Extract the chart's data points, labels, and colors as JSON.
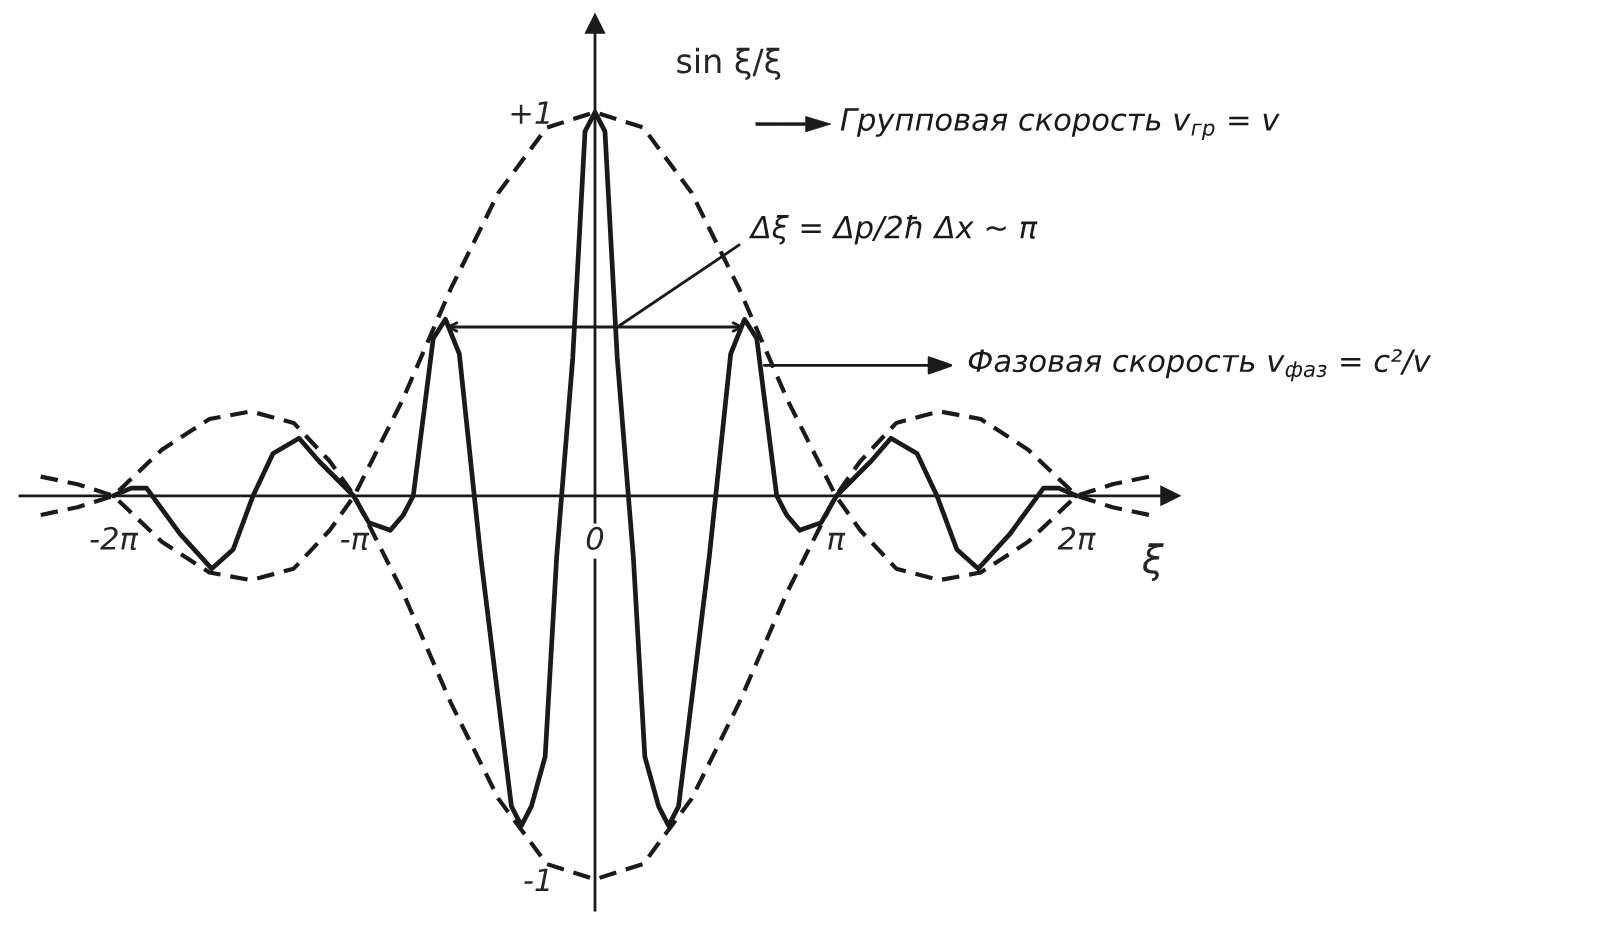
{
  "chart_data": {
    "type": "line",
    "xlabel": "ξ",
    "ylabel": "sin ξ/ξ",
    "series": [
      {
        "color": "#1a1a1a",
        "line_style": "dashed",
        "x": [
          -7.23,
          -6.75,
          -6.28,
          -5.65,
          -5.03,
          -4.49,
          -3.93,
          -3.46,
          -3.14,
          -2.51,
          -1.88,
          -1.26,
          -0.63,
          0,
          0.63,
          1.26,
          1.88,
          2.51,
          3.14,
          3.46,
          3.93,
          4.49,
          5.03,
          5.65,
          6.28,
          6.75,
          7.23
        ],
        "values": [
          0.05,
          0.03,
          0.0,
          -0.12,
          -0.2,
          -0.22,
          -0.19,
          -0.09,
          0.0,
          0.25,
          0.54,
          0.79,
          0.96,
          1.0,
          0.96,
          0.79,
          0.54,
          0.25,
          0.0,
          -0.09,
          -0.19,
          -0.22,
          -0.2,
          -0.12,
          0.0,
          0.03,
          0.05
        ]
      },
      {
        "color": "#1a1a1a",
        "line_style": "dashed",
        "x": [
          -7.23,
          -6.75,
          -6.28,
          -5.65,
          -5.03,
          -4.49,
          -3.93,
          -3.46,
          -3.14,
          -2.51,
          -1.88,
          -1.26,
          -0.63,
          0,
          0.63,
          1.26,
          1.88,
          2.51,
          3.14,
          3.46,
          3.93,
          4.49,
          5.03,
          5.65,
          6.28,
          6.75,
          7.23
        ],
        "values": [
          -0.05,
          -0.03,
          0.0,
          0.12,
          0.2,
          0.22,
          0.19,
          0.09,
          0.0,
          -0.25,
          -0.54,
          -0.79,
          -0.96,
          -1.0,
          -0.96,
          -0.79,
          -0.54,
          -0.25,
          0.0,
          0.09,
          0.19,
          0.22,
          0.2,
          0.12,
          0.0,
          -0.03,
          -0.05
        ]
      },
      {
        "color": "#1a1a1a",
        "line_style": "solid",
        "x": [
          -6.28,
          -6.05,
          -5.85,
          -5.41,
          -5.0,
          -4.72,
          -4.46,
          -4.2,
          -3.86,
          -3.6,
          -3.15,
          -2.95,
          -2.67,
          -2.5,
          -2.37,
          -2.11,
          -1.95,
          -1.77,
          -1.49,
          -1.17,
          -1.09,
          -0.96,
          -0.83,
          -0.65,
          -0.5,
          -0.29,
          -0.13,
          0,
          0.13,
          0.29,
          0.5,
          0.65,
          0.83,
          0.96,
          1.09,
          1.17,
          1.49,
          1.77,
          1.95,
          2.11,
          2.37,
          2.5,
          2.67,
          2.95,
          3.15,
          3.6,
          3.86,
          4.2,
          4.46,
          4.72,
          5.0,
          5.41,
          5.85,
          6.05,
          6.28
        ],
        "values": [
          0.0,
          0.02,
          0.02,
          -0.1,
          -0.19,
          -0.14,
          0.0,
          0.11,
          0.15,
          0.09,
          0.0,
          -0.07,
          -0.09,
          -0.05,
          0.0,
          0.41,
          0.46,
          0.37,
          -0.16,
          -0.68,
          -0.81,
          -0.86,
          -0.81,
          -0.68,
          -0.16,
          0.36,
          0.95,
          1.0,
          0.95,
          0.36,
          -0.16,
          -0.68,
          -0.81,
          -0.86,
          -0.81,
          -0.68,
          -0.16,
          0.37,
          0.46,
          0.41,
          0.0,
          -0.05,
          -0.09,
          -0.07,
          0.0,
          0.09,
          0.15,
          0.11,
          0.0,
          -0.14,
          -0.19,
          -0.1,
          0.02,
          0.02,
          0.0
        ]
      }
    ],
    "xlim": [
      -7.5,
      7.5
    ],
    "ylim": [
      -1.08,
      1.23
    ],
    "xticks": [
      {
        "value": -6.28,
        "label": "-2π"
      },
      {
        "value": -3.14,
        "label": "-π"
      },
      0,
      {
        "value": 3.14,
        "label": "π"
      },
      {
        "value": 6.28,
        "label": "2π"
      }
    ],
    "yticks": [
      {
        "value": 1,
        "label": "+1"
      },
      -1
    ],
    "annotations": [
      "Групповая скорость v$_{гр}$ = v",
      {
        "text": "Δξ = Δp/2ħ Δx ~ π",
        "x": 1.95,
        "y": 0.44
      },
      {
        "text": "Фазовая скорость v$_{фаз}$ = c²/v",
        "x": 2.1,
        "y": 0.34
      }
    ]
  }
}
